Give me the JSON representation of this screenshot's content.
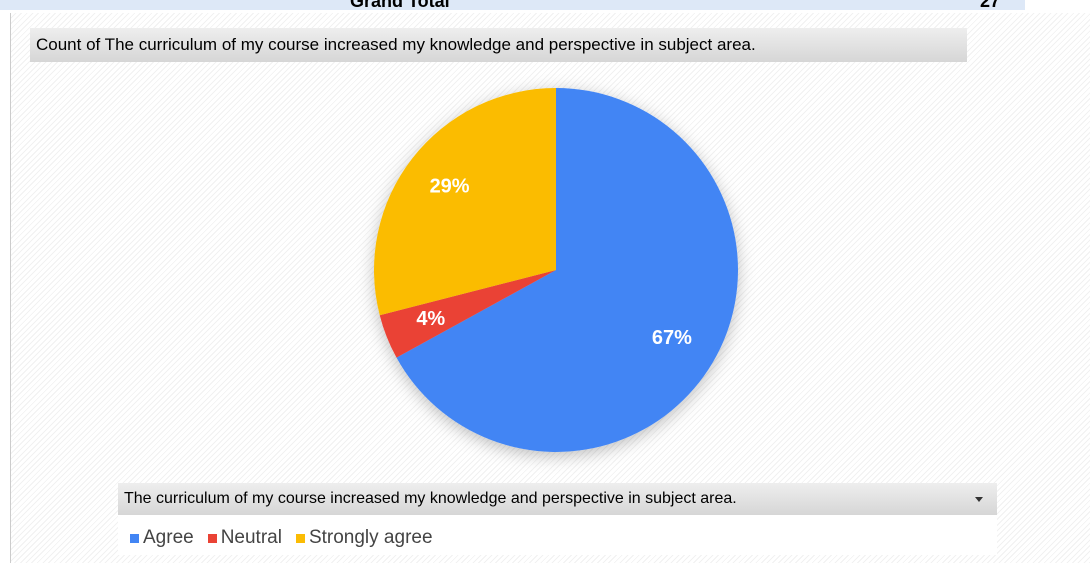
{
  "pivot_total": {
    "label": "Grand Total",
    "value": 27
  },
  "chart_data": {
    "type": "pie",
    "title": "Count of The curriculum of my course increased my knowledge and perspective in subject area.",
    "legend_title": "The curriculum of my course increased my knowledge and perspective in subject area.",
    "categories": [
      "Agree",
      "Neutral",
      "Strongly agree"
    ],
    "values": [
      67,
      4,
      29
    ],
    "value_labels": [
      "67%",
      "4%",
      "29%"
    ],
    "colors": [
      "#4285f4",
      "#ea4335",
      "#fbbc04"
    ],
    "legend": "bottom"
  }
}
